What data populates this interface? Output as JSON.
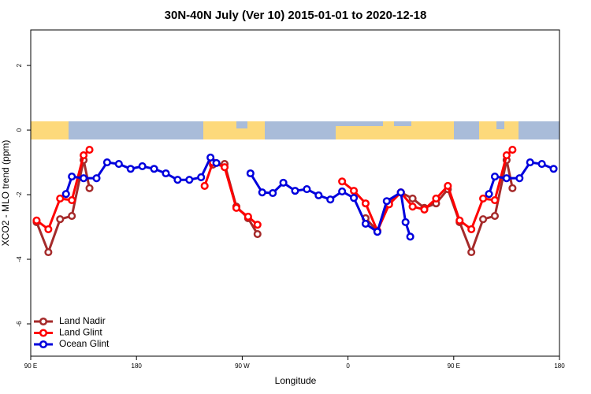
{
  "chart_data": {
    "type": "line",
    "title": "30N-40N July (Ver 10)   2015-01-01 to 2020-12-18",
    "xlabel": "Longitude",
    "ylabel": "XCO2 - MLO trend (ppm)",
    "xlim": [
      90,
      540
    ],
    "ylim": [
      -7,
      3.1
    ],
    "xticks": [
      {
        "value": 90,
        "label": "90 E"
      },
      180,
      {
        "value": 270,
        "label": "90 W"
      },
      {
        "value": 360,
        "label": "0"
      },
      {
        "value": 450,
        "label": "90 E"
      },
      {
        "value": 540,
        "label": "180"
      }
    ],
    "yticks": [
      -6,
      -4,
      -2,
      0,
      2
    ],
    "legend": "bottom-left",
    "series": [
      {
        "name": "Land Nadir",
        "color": "#a52a2a",
        "x": [
          95,
          105,
          115,
          125,
          135,
          140,
          null,
          245,
          255,
          265,
          275,
          283,
          null,
          375,
          385,
          395,
          405,
          415,
          425,
          435,
          445,
          455,
          465,
          475,
          485,
          495,
          500
        ],
        "values": [
          -2.85,
          -3.78,
          -2.76,
          -2.66,
          -0.93,
          -1.8,
          null,
          -1.07,
          -1.05,
          -2.37,
          -2.73,
          -3.22,
          null,
          -2.73,
          -3.12,
          -2.22,
          -1.93,
          -2.12,
          -2.41,
          -2.27,
          -1.83,
          -2.85,
          -3.78,
          -2.76,
          -2.66,
          -0.93,
          -1.8
        ]
      },
      {
        "name": "Land Glint",
        "color": "#ff0000",
        "x": [
          95,
          105,
          115,
          125,
          135,
          140,
          null,
          238,
          245,
          255,
          265,
          275,
          283,
          null,
          355,
          365,
          375,
          385,
          395,
          405,
          415,
          425,
          435,
          445,
          455,
          465,
          475,
          485,
          495,
          500
        ],
        "values": [
          -2.8,
          -3.07,
          -2.12,
          -2.17,
          -0.78,
          -0.61,
          null,
          -1.73,
          -1.0,
          -1.15,
          -2.41,
          -2.68,
          -2.93,
          null,
          -1.59,
          -1.88,
          -2.27,
          -3.12,
          -2.3,
          -1.93,
          -2.37,
          -2.46,
          -2.12,
          -1.73,
          -2.8,
          -3.07,
          -2.12,
          -2.17,
          -0.78,
          -0.61
        ]
      },
      {
        "name": "Ocean Glint",
        "color": "#0000dd",
        "x": [
          120,
          125,
          135,
          146,
          155,
          165,
          175,
          185,
          195,
          205,
          215,
          225,
          235,
          243,
          248,
          null,
          277,
          287,
          296,
          305,
          315,
          325,
          335,
          345,
          355,
          365,
          375,
          385,
          393,
          405,
          409,
          413,
          null,
          480,
          485,
          495,
          506,
          515,
          525,
          535
        ],
        "values": [
          -1.98,
          -1.44,
          -1.49,
          -1.49,
          -1.0,
          -1.05,
          -1.2,
          -1.12,
          -1.2,
          -1.34,
          -1.54,
          -1.54,
          -1.46,
          -0.85,
          -1.02,
          null,
          -1.34,
          -1.93,
          -1.95,
          -1.63,
          -1.88,
          -1.83,
          -2.02,
          -2.15,
          -1.9,
          -2.1,
          -2.9,
          -3.15,
          -2.2,
          -1.93,
          -2.85,
          -3.3,
          null,
          -1.98,
          -1.44,
          -1.49,
          -1.49,
          -1.0,
          -1.05,
          -1.2
        ]
      }
    ]
  }
}
